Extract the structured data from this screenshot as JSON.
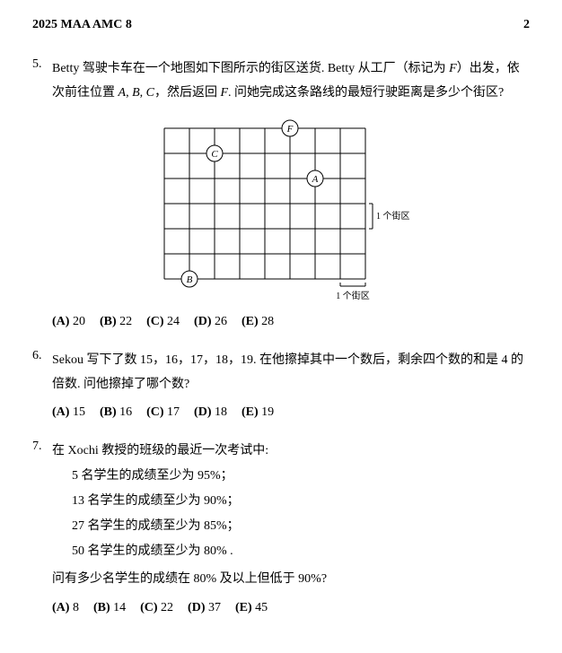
{
  "header": {
    "title": "2025 MAA AMC 8",
    "page": "2"
  },
  "p5": {
    "num": "5.",
    "text_a": "Betty 驾驶卡车在一个地图如下图所示的街区送货. Betty 从工厂（标记为 ",
    "F": "F",
    "text_b": "）出发，依次前往位置 ",
    "A": "A",
    "comma1": ", ",
    "B": "B",
    "comma2": ", ",
    "C": "C",
    "text_c": "，然后返回 ",
    "F2": "F",
    "text_d": ". 问她完成这条路线的最短行驶距离是多少个街区?",
    "grid": {
      "cols": 8,
      "rows": 6,
      "cell": 28,
      "line_color": "#000000",
      "line_width": 1,
      "labels": {
        "F": {
          "col": 5,
          "row": 0
        },
        "C": {
          "col": 2,
          "row": 1
        },
        "A": {
          "col": 6,
          "row": 2
        },
        "B": {
          "col": 1,
          "row": 6
        }
      },
      "x_caption": "1 个街区",
      "y_caption": "1 个街区",
      "caption_fontsize": 10
    },
    "choices": [
      {
        "lab": "(A)",
        "val": "20"
      },
      {
        "lab": "(B)",
        "val": "22"
      },
      {
        "lab": "(C)",
        "val": "24"
      },
      {
        "lab": "(D)",
        "val": "26"
      },
      {
        "lab": "(E)",
        "val": "28"
      }
    ]
  },
  "p6": {
    "num": "6.",
    "text": "Sekou 写下了数 15，16，17，18，19. 在他擦掉其中一个数后，剩余四个数的和是 4 的倍数. 问他擦掉了哪个数?",
    "choices": [
      {
        "lab": "(A)",
        "val": "15"
      },
      {
        "lab": "(B)",
        "val": "16"
      },
      {
        "lab": "(C)",
        "val": "17"
      },
      {
        "lab": "(D)",
        "val": "18"
      },
      {
        "lab": "(E)",
        "val": "19"
      }
    ]
  },
  "p7": {
    "num": "7.",
    "intro": "在 Xochi 教授的班级的最近一次考试中:",
    "lines": [
      "5 名学生的成绩至少为 95%；",
      "13 名学生的成绩至少为 90%；",
      "27 名学生的成绩至少为 85%；",
      "50 名学生的成绩至少为 80% ."
    ],
    "question": "问有多少名学生的成绩在 80% 及以上但低于 90%?",
    "choices": [
      {
        "lab": "(A)",
        "val": "8"
      },
      {
        "lab": "(B)",
        "val": "14"
      },
      {
        "lab": "(C)",
        "val": "22"
      },
      {
        "lab": "(D)",
        "val": "37"
      },
      {
        "lab": "(E)",
        "val": "45"
      }
    ]
  }
}
